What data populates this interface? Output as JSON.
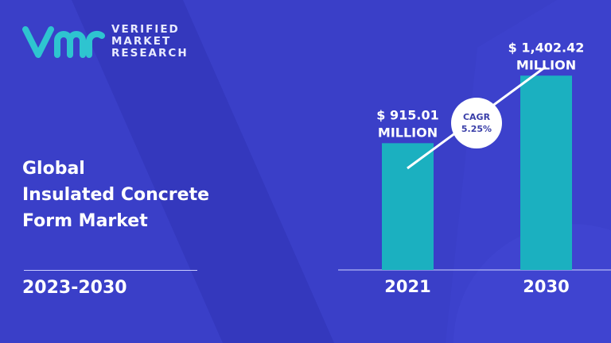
{
  "logo": {
    "brand": "VERIFIED MARKET RESEARCH",
    "lines": [
      "VERIFIED",
      "MARKET",
      "RESEARCH"
    ],
    "mark": "vmr"
  },
  "title_lines": [
    "Global",
    "Insulated Concrete",
    "Form Market"
  ],
  "period": "2023-2030",
  "colors": {
    "background": "#3a3fc8",
    "bar": "#1bb0c0",
    "logo_mark": "#2ec4d0"
  },
  "chart_data": {
    "type": "bar",
    "categories": [
      "2021",
      "2030"
    ],
    "values": [
      915.01,
      1402.42
    ],
    "unit": "MILLION",
    "data_labels": [
      [
        "$ 915.01",
        "MILLION"
      ],
      [
        "$ 1,402.42",
        "MILLION"
      ]
    ],
    "annotation": {
      "label": "CAGR",
      "value": "5.25%"
    },
    "grid": false
  }
}
